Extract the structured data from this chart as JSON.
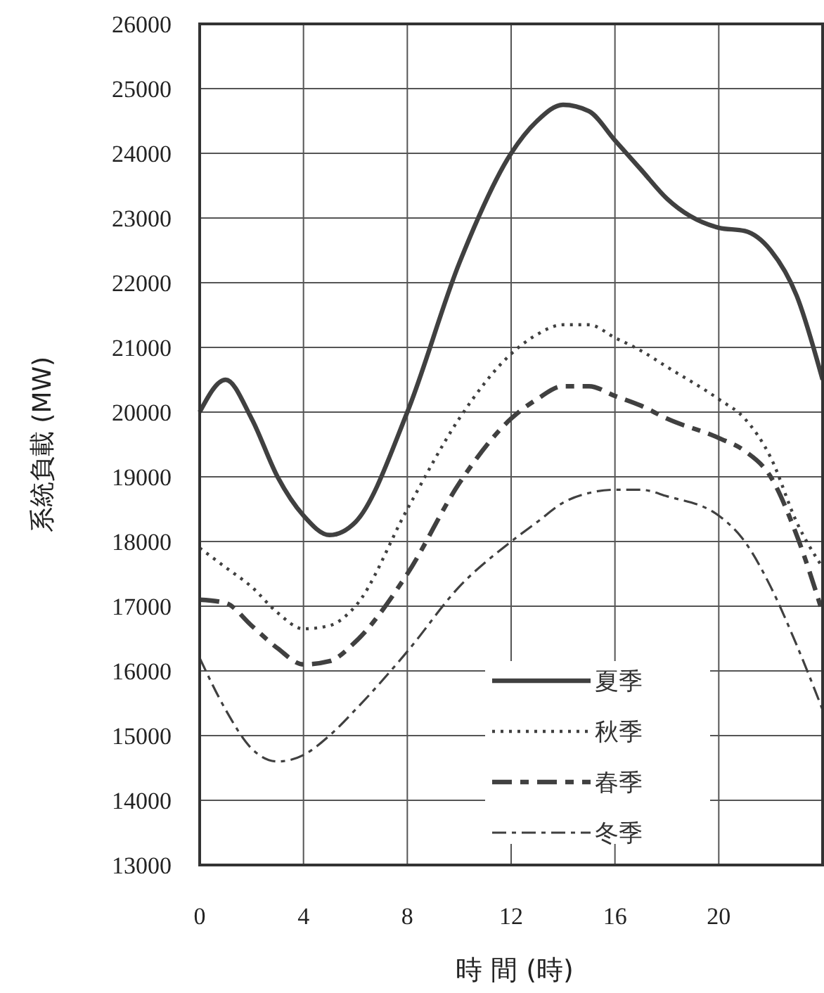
{
  "chart_data": {
    "type": "line",
    "xlabel": "時 間 (時)",
    "ylabel": "系統負載 (MW)",
    "xlim": [
      0,
      24
    ],
    "xticks": [
      0,
      4,
      8,
      12,
      16,
      20
    ],
    "ylim": [
      13000,
      26000
    ],
    "yticks": [
      13000,
      14000,
      15000,
      16000,
      17000,
      18000,
      19000,
      20000,
      21000,
      22000,
      23000,
      24000,
      25000,
      26000
    ],
    "grid": true,
    "legend": "bottom right",
    "marker": "none",
    "x": [
      0,
      1,
      2,
      3,
      4,
      5,
      6,
      8,
      10,
      12,
      13,
      14,
      15,
      16,
      17,
      18,
      20,
      21,
      22,
      23,
      24
    ],
    "series": [
      {
        "name": "夏季",
        "color": "#404040",
        "line_style": "solid",
        "values": [
          20000,
          20500,
          19900,
          19000,
          18400,
          18100,
          18300,
          20000,
          22300,
          24000,
          24500,
          24750,
          24650,
          24200,
          23750,
          23300,
          22850,
          22800,
          22500,
          21800,
          20500
        ]
      },
      {
        "name": "秋季",
        "color": "#404040",
        "line_style": "dotted",
        "values": [
          17900,
          17600,
          17300,
          16900,
          16650,
          16700,
          17000,
          18500,
          19900,
          20900,
          21200,
          21350,
          21350,
          21150,
          20950,
          20700,
          20200,
          19900,
          19300,
          18300,
          17600
        ]
      },
      {
        "name": "春季",
        "color": "#404040",
        "line_style": "dashed",
        "values": [
          17100,
          17050,
          16700,
          16350,
          16100,
          16150,
          16450,
          17500,
          18900,
          19900,
          20200,
          20400,
          20400,
          20250,
          20100,
          19900,
          19600,
          19400,
          19000,
          18100,
          16900
        ]
      },
      {
        "name": "冬季",
        "color": "#404040",
        "line_style": "dashed",
        "values": [
          16200,
          15400,
          14800,
          14600,
          14700,
          15000,
          15400,
          16300,
          17300,
          18000,
          18300,
          18600,
          18750,
          18800,
          18800,
          18700,
          18400,
          18000,
          17300,
          16400,
          15400
        ]
      }
    ]
  }
}
